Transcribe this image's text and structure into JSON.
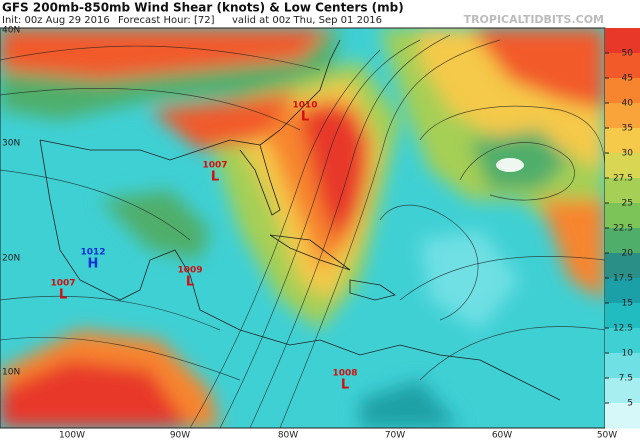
{
  "header": {
    "title": "GFS 200mb-850mb Wind Shear (knots) & Low Centers (mb)",
    "init": "Init: 00z Aug 29 2016",
    "forecast_hour": "Forecast Hour: [72]",
    "valid": "valid at 00z Thu, Sep 01 2016",
    "site": "TROPICALTIDBITS.COM"
  },
  "map": {
    "lat_labels": [
      "40N",
      "30N",
      "20N",
      "10N"
    ],
    "lon_labels": [
      "100W",
      "90W",
      "80W",
      "70W",
      "60W",
      "50W"
    ],
    "centers": [
      {
        "pressure": 1010,
        "symbol": "L",
        "color": "#d01010"
      },
      {
        "pressure": 1007,
        "symbol": "L",
        "color": "#d01010"
      },
      {
        "pressure": 1012,
        "symbol": "H",
        "color": "#1030d0"
      },
      {
        "pressure": 1007,
        "symbol": "L",
        "color": "#d01010"
      },
      {
        "pressure": 1009,
        "symbol": "L",
        "color": "#d01010"
      },
      {
        "pressure": 1008,
        "symbol": "L",
        "color": "#d01010"
      }
    ]
  },
  "colorbar": {
    "ticks": [
      50,
      45,
      40,
      35,
      30,
      27.5,
      25,
      22.5,
      20,
      17.5,
      15,
      12.5,
      10,
      7.5,
      5
    ],
    "colors": [
      "#e8382a",
      "#f25a2a",
      "#f7852f",
      "#f8a43a",
      "#f5c94a",
      "#d9d653",
      "#a6cf55",
      "#7cc457",
      "#4fae6a",
      "#2a8f86",
      "#1aa0a6",
      "#21bcc0",
      "#3fd0d4",
      "#6fe0e4",
      "#a6eef0",
      "#d6f8f8"
    ]
  }
}
